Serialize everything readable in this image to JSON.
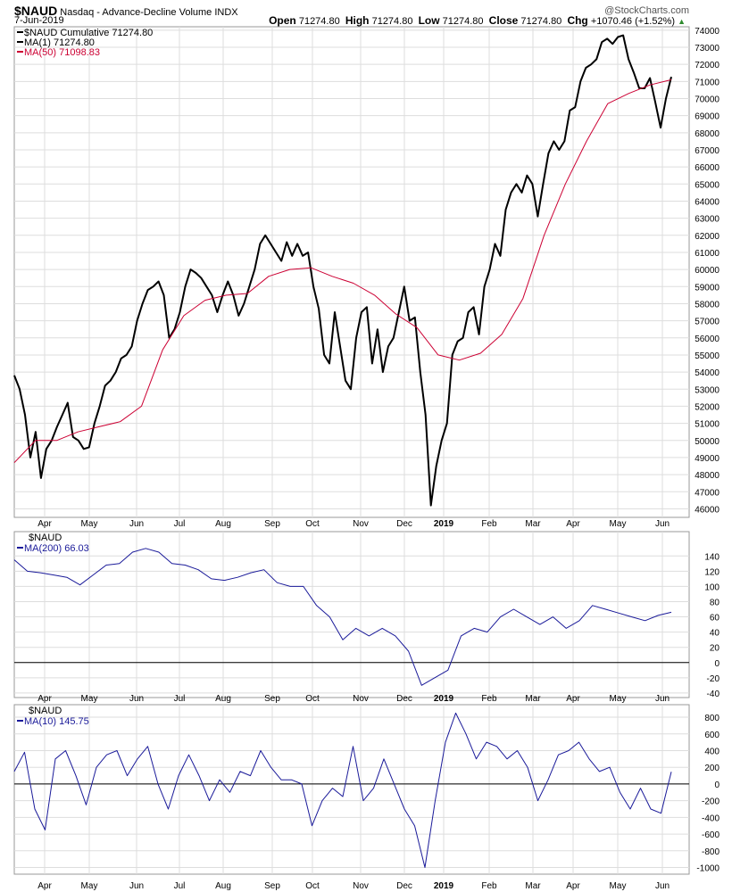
{
  "header": {
    "symbol": "$NAUD",
    "name": "Nasdaq - Advance-Decline Volume INDX",
    "date": "7-Jun-2019",
    "watermark": "@StockCharts.com",
    "open_label": "Open",
    "open": "71274.80",
    "high_label": "High",
    "high": "71274.80",
    "low_label": "Low",
    "low": "71274.80",
    "close_label": "Close",
    "close": "71274.80",
    "chg_label": "Chg",
    "chg": "+1070.46 (+1.52%)"
  },
  "colors": {
    "price": "#000000",
    "ma50": "#cc0033",
    "indicator": "#1a1a99",
    "grid": "#dddddd",
    "up": "#2e8b2e"
  },
  "x_labels": [
    "Apr",
    "May",
    "Jun",
    "Jul",
    "Aug",
    "Sep",
    "Oct",
    "Nov",
    "Dec",
    "2019",
    "Feb",
    "Mar",
    "Apr",
    "May",
    "Jun"
  ],
  "chart_data": [
    {
      "type": "line",
      "title": "$NAUD Cumulative",
      "legend": [
        "$NAUD Cumulative 71274.80",
        "MA(1) 71274.80",
        "MA(50) 71098.83"
      ],
      "ylim": [
        45500,
        74200
      ],
      "yticks": [
        46000,
        47000,
        48000,
        49000,
        50000,
        51000,
        52000,
        53000,
        54000,
        55000,
        56000,
        57000,
        58000,
        59000,
        60000,
        61000,
        62000,
        63000,
        64000,
        65000,
        66000,
        67000,
        68000,
        69000,
        70000,
        71000,
        72000,
        73000,
        74000
      ],
      "series": [
        {
          "name": "$NAUD Cumulative",
          "values": [
            53800,
            53000,
            51500,
            49000,
            50500,
            47800,
            49500,
            50000,
            50800,
            51500,
            52200,
            50200,
            50000,
            49500,
            49600,
            51000,
            52000,
            53200,
            53500,
            54000,
            54800,
            55000,
            55500,
            57000,
            58000,
            58800,
            59000,
            59300,
            58500,
            56000,
            56500,
            57500,
            59000,
            60000,
            59800,
            59500,
            59000,
            58500,
            57500,
            58500,
            59300,
            58500,
            57300,
            58000,
            59000,
            60000,
            61500,
            62000,
            61500,
            61000,
            60500,
            61600,
            60800,
            61500,
            60800,
            61000,
            59000,
            57700,
            55000,
            54500,
            57500,
            55500,
            53500,
            53000,
            56000,
            57500,
            57800,
            54500,
            56500,
            54000,
            55500,
            56000,
            57500,
            59000,
            57000,
            57200,
            54000,
            51500,
            46200,
            48500,
            50000,
            51000,
            55000,
            55800,
            56000,
            57500,
            57800,
            56200,
            59000,
            60000,
            61500,
            60800,
            63500,
            64500,
            65000,
            64500,
            65500,
            65000,
            63100,
            65000,
            66800,
            67500,
            67000,
            67500,
            69300,
            69500,
            71000,
            71800,
            72000,
            72300,
            73300,
            73500,
            73200,
            73600,
            73700,
            72300,
            71500,
            70600,
            70600,
            71200,
            69800,
            68300,
            70000,
            71274.8
          ]
        },
        {
          "name": "MA(50)",
          "values": [
            48700,
            50000,
            50000,
            50500,
            50800,
            51100,
            52000,
            55300,
            57300,
            58200,
            58500,
            58600,
            59600,
            60000,
            60100,
            59600,
            59200,
            58500,
            57400,
            56600,
            55000,
            54700,
            55100,
            56200,
            58300,
            62000,
            65000,
            67500,
            69700,
            70300,
            70800,
            71098.83
          ]
        }
      ]
    },
    {
      "type": "line",
      "title": "$NAUD",
      "legend": [
        "MA(200) 66.03"
      ],
      "ylim": [
        -46,
        172
      ],
      "yticks": [
        -40,
        -20,
        0,
        20,
        40,
        60,
        80,
        100,
        120,
        140
      ],
      "series": [
        {
          "name": "MA(200)",
          "values": [
            135,
            120,
            118,
            115,
            112,
            102,
            115,
            128,
            130,
            145,
            150,
            145,
            130,
            128,
            122,
            110,
            108,
            112,
            118,
            122,
            105,
            100,
            100,
            75,
            60,
            30,
            45,
            35,
            45,
            35,
            15,
            -30,
            -20,
            -10,
            35,
            45,
            40,
            60,
            70,
            60,
            50,
            60,
            45,
            55,
            75,
            70,
            65,
            60,
            55,
            62,
            66.03
          ]
        }
      ]
    },
    {
      "type": "line",
      "title": "$NAUD",
      "legend": [
        "MA(10) 145.75"
      ],
      "ylim": [
        -1080,
        950
      ],
      "yticks": [
        -1000,
        -800,
        -600,
        -400,
        -200,
        0,
        200,
        400,
        600,
        800
      ],
      "series": [
        {
          "name": "MA(10)",
          "values": [
            150,
            380,
            -300,
            -550,
            300,
            400,
            100,
            -250,
            200,
            350,
            400,
            100,
            300,
            450,
            0,
            -300,
            100,
            350,
            100,
            -200,
            50,
            -100,
            150,
            100,
            400,
            200,
            50,
            50,
            0,
            -500,
            -200,
            -50,
            -150,
            450,
            -200,
            -50,
            300,
            0,
            -300,
            -500,
            -1000,
            -200,
            500,
            850,
            600,
            300,
            500,
            450,
            300,
            400,
            200,
            -200,
            50,
            350,
            400,
            500,
            300,
            150,
            200,
            -100,
            -300,
            -50,
            -300,
            -350,
            145.75
          ]
        }
      ]
    }
  ]
}
